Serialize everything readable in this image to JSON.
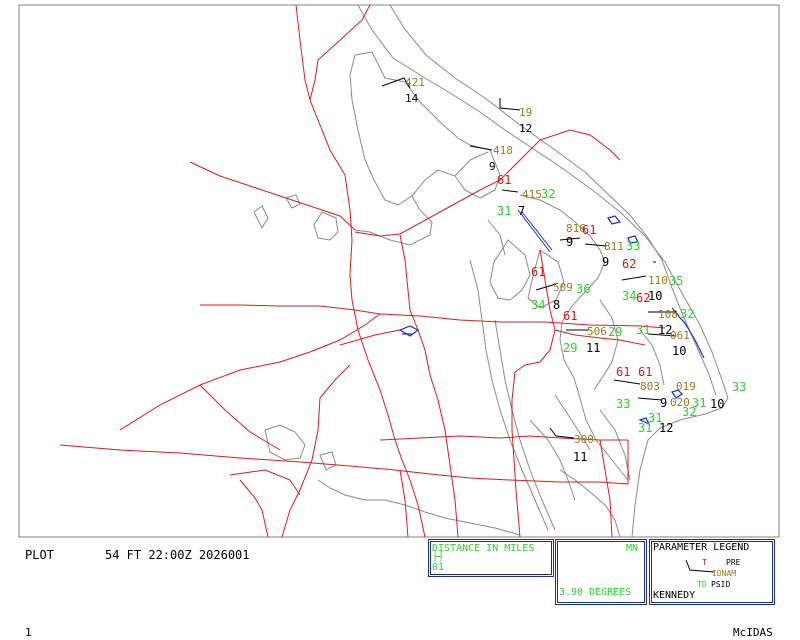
{
  "status": {
    "plot_label": "PLOT",
    "plot_info": "54 FT 22:00Z 2026001",
    "frame_number": "1",
    "app_name": "McIDAS"
  },
  "panels": {
    "distance": {
      "title": "DISTANCE IN MILES",
      "scale_value": "01"
    },
    "north": {
      "label": "MN",
      "degrees": "3.90 DEGREES"
    },
    "legend": {
      "title": "PARAMETER LEGEND",
      "t_label": "T",
      "pre_label": "PRE",
      "idnam_label": "IDNAM",
      "td_label": "TD",
      "psid_label": "PSID",
      "station": "KENNEDY"
    }
  },
  "colors": {
    "background": "#ffffff",
    "map_gray": "#8a8a8a",
    "roads_red": "#d42020",
    "water_blue": "#1a2fd0",
    "temperature": "#cc1e1e",
    "dewpoint": "#2fd02f",
    "station_id": "#9a7a20",
    "pressure": "#000000",
    "panel_border": "#1b2f8f"
  },
  "stations": [
    {
      "id": "421",
      "psid": "14"
    },
    {
      "id": "19",
      "psid": "12"
    },
    {
      "id": "418",
      "psid": "9"
    },
    {
      "id": "415",
      "t": "61",
      "td": "31",
      "pre": "32",
      "psid": "7"
    },
    {
      "id": "816",
      "t": "61",
      "psid": "9"
    },
    {
      "id": "811",
      "t": "62",
      "td": "33",
      "psid": "9"
    },
    {
      "id": "509",
      "t": "61",
      "td": "34",
      "pre": "36",
      "psid": "8"
    },
    {
      "id": "110",
      "t": "62",
      "td": "34",
      "pre": "35",
      "psid": "10"
    },
    {
      "id": "506",
      "t": "61",
      "td": "29",
      "pre": "29",
      "psid": "11"
    },
    {
      "id": "108",
      "td": "31",
      "pre": "32",
      "psid": "12"
    },
    {
      "id": "061",
      "psid": "10"
    },
    {
      "id": "803",
      "t": "61",
      "td": "33",
      "pre": "31",
      "psid": "9"
    },
    {
      "id": "019",
      "t": "61",
      "td": "31",
      "pre": "33",
      "psid": "10"
    },
    {
      "id": "020",
      "td": "31",
      "pre": "32",
      "psid": "12"
    },
    {
      "id": "300",
      "psid": "11"
    }
  ]
}
